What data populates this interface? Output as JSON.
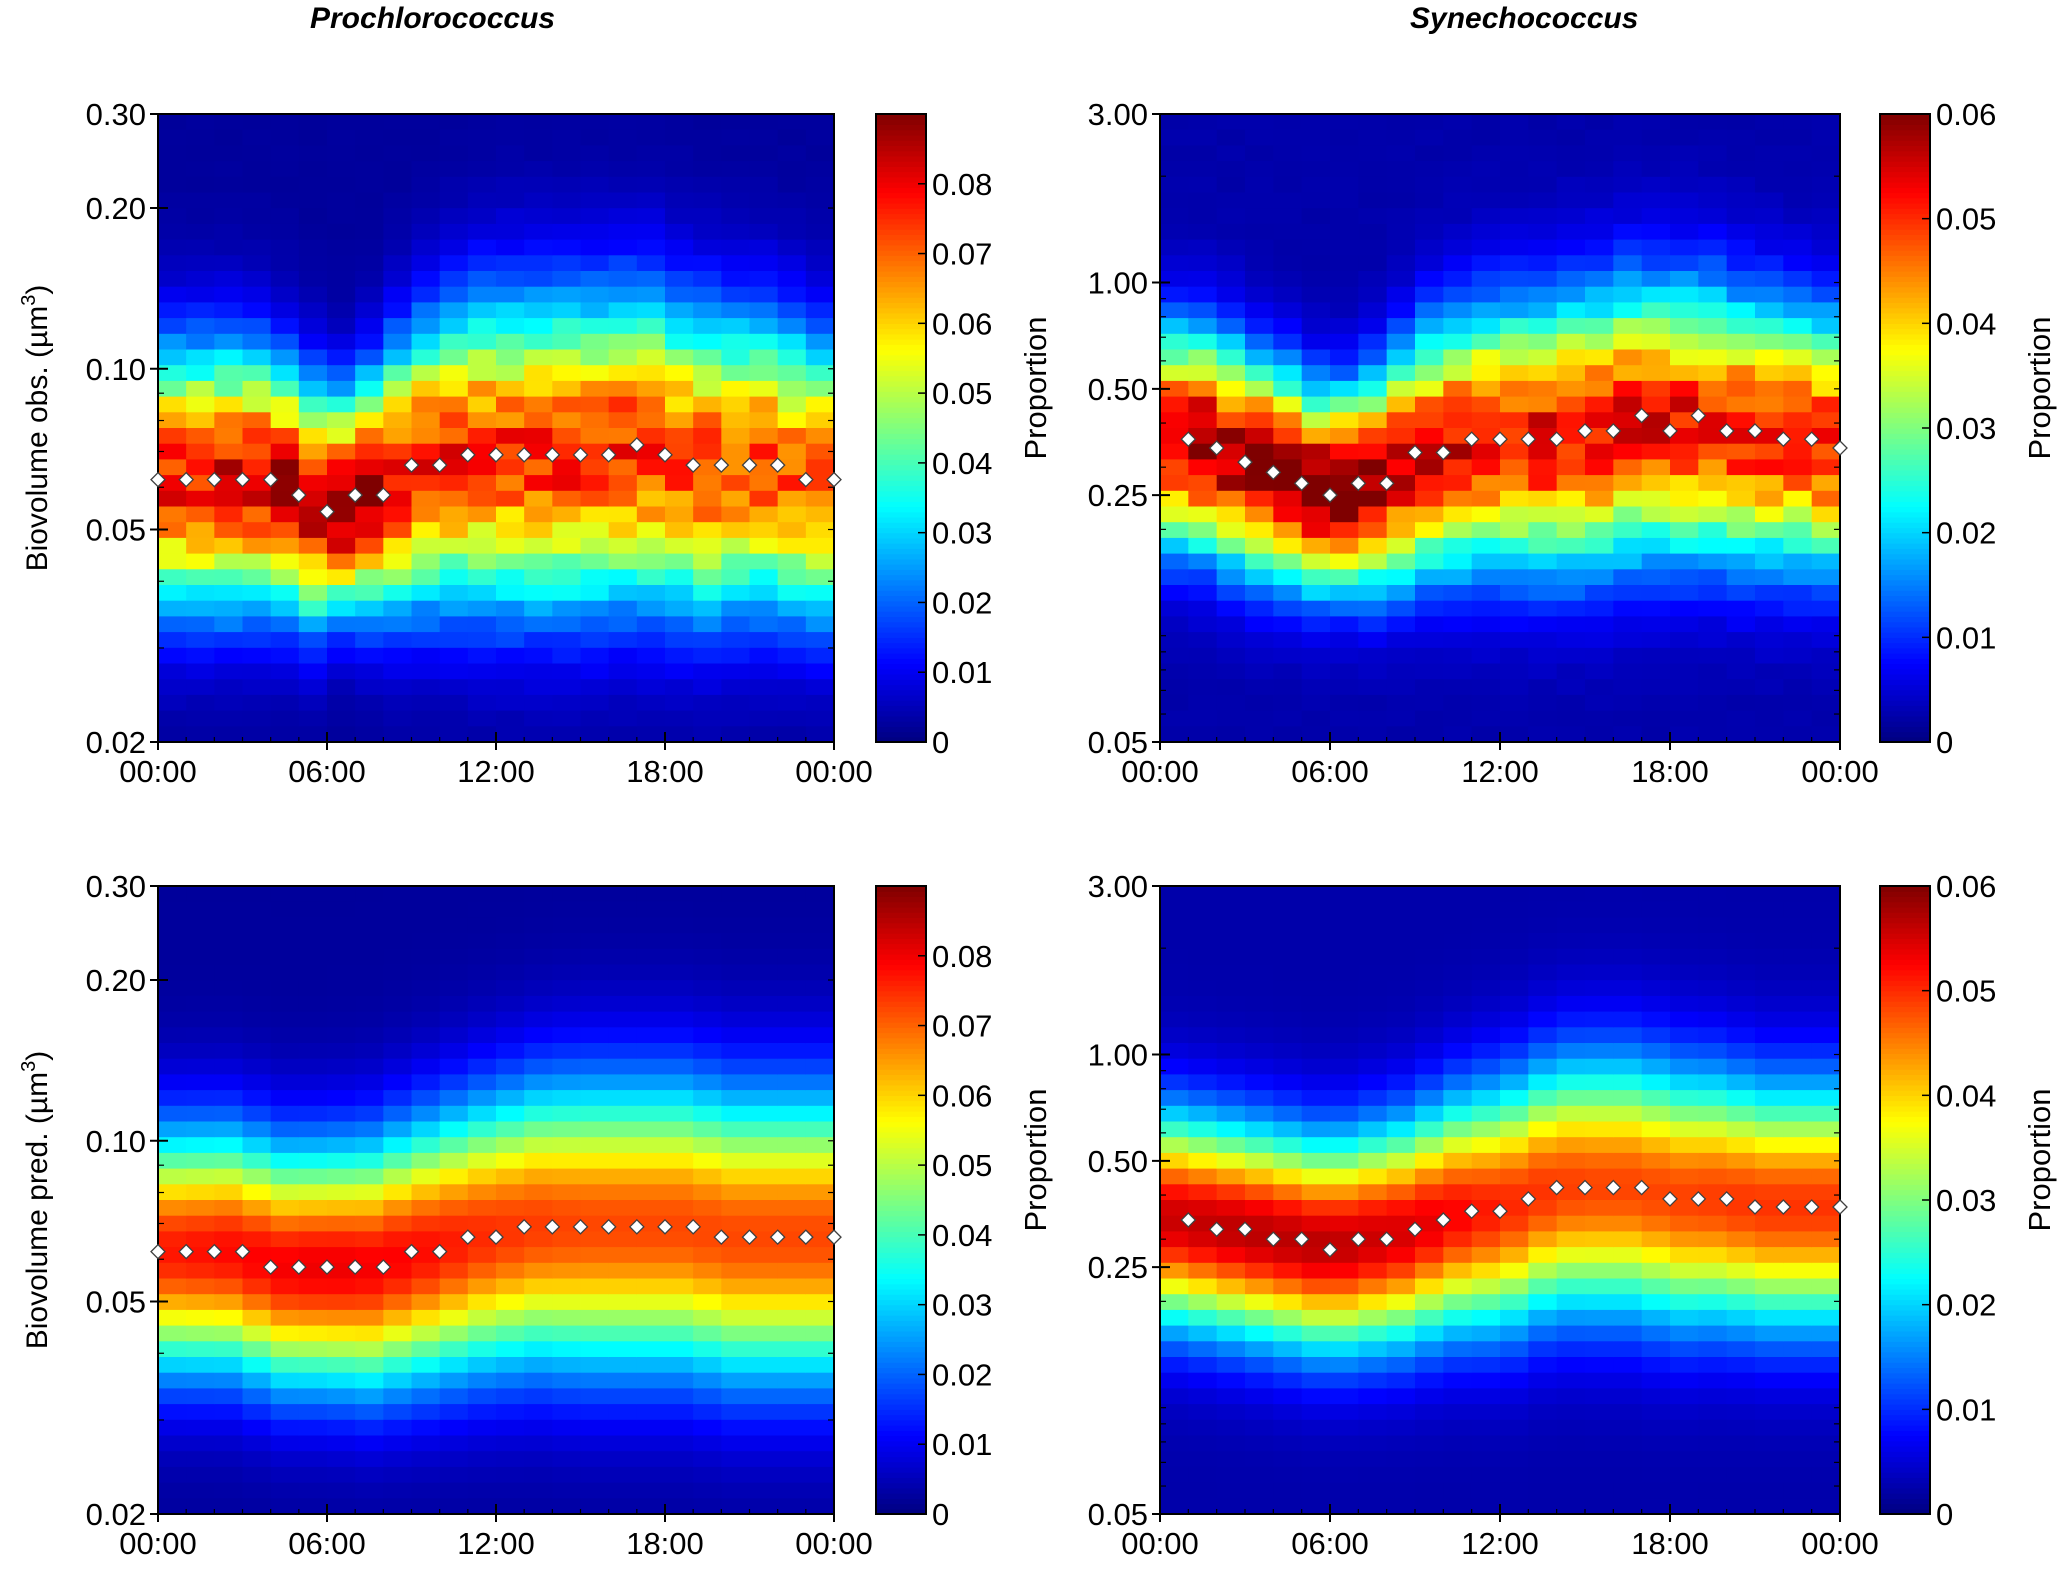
{
  "column_titles": [
    "Prochlorococcus",
    "Synechococcus"
  ],
  "colors": {
    "colormap": [
      "#00007f",
      "#0000ff",
      "#007fff",
      "#00ffff",
      "#7fff7f",
      "#ffff00",
      "#ff7f00",
      "#ff0000",
      "#7f0000"
    ],
    "marker_fill": "#ffffff",
    "marker_stroke": "#404040"
  },
  "chart_data": [
    {
      "type": "heatmap",
      "panel": "top-left",
      "title": "",
      "xlabel": "",
      "ylabel": "Biovolume obs. (µm3)",
      "ylabel_main": "Biovolume obs. (µm",
      "ylabel_sup": "3",
      "ylabel_close": ")",
      "yscale": "log",
      "ylim": [
        0.02,
        0.3
      ],
      "yticks": [
        0.02,
        0.05,
        0.1,
        0.2,
        0.3
      ],
      "ytick_labels": [
        "0.02",
        "0.05",
        "0.10",
        "0.20",
        "0.30"
      ],
      "x_range_hours": [
        0,
        24
      ],
      "xticks_hours": [
        0,
        6,
        12,
        18,
        24
      ],
      "xtick_labels": [
        "00:00",
        "06:00",
        "12:00",
        "18:00",
        "00:00"
      ],
      "colorbar": {
        "label": "Proportion",
        "range": [
          0,
          0.09
        ],
        "ticks": [
          0,
          0.01,
          0.02,
          0.03,
          0.04,
          0.05,
          0.06,
          0.07,
          0.08
        ],
        "tick_labels": [
          "0",
          "0.01",
          "0.02",
          "0.03",
          "0.04",
          "0.05",
          "0.06",
          "0.07",
          "0.08"
        ]
      },
      "series": [
        {
          "marker": "diamond",
          "x_hours": [
            0,
            1,
            2,
            3,
            4,
            5,
            6,
            7,
            8,
            9,
            10,
            11,
            12,
            13,
            14,
            15,
            16,
            17,
            18,
            19,
            20,
            21,
            22,
            23,
            24
          ],
          "y": [
            0.062,
            0.062,
            0.062,
            0.062,
            0.062,
            0.058,
            0.054,
            0.058,
            0.058,
            0.066,
            0.066,
            0.069,
            0.069,
            0.069,
            0.069,
            0.069,
            0.069,
            0.072,
            0.069,
            0.066,
            0.066,
            0.066,
            0.066,
            0.062,
            0.062
          ]
        }
      ],
      "heatmap_profile": {
        "description": "distribution centered on series median",
        "peak_value_hours": [
          0,
          3,
          6,
          6.5,
          8,
          9,
          12,
          15,
          18,
          21,
          24
        ],
        "peak_values": [
          0.075,
          0.078,
          0.085,
          0.089,
          0.08,
          0.075,
          0.072,
          0.074,
          0.072,
          0.07,
          0.07
        ],
        "log_sigma": [
          0.16,
          0.16,
          0.14,
          0.13,
          0.15,
          0.17,
          0.19,
          0.19,
          0.19,
          0.18,
          0.17
        ]
      }
    },
    {
      "type": "heatmap",
      "panel": "top-right",
      "title": "",
      "xlabel": "",
      "ylabel": "",
      "yscale": "log",
      "ylim": [
        0.05,
        3.0
      ],
      "yticks": [
        0.05,
        0.25,
        0.5,
        1.0,
        3.0
      ],
      "ytick_labels": [
        "0.05",
        "0.25",
        "0.50",
        "1.00",
        "3.00"
      ],
      "x_range_hours": [
        0,
        24
      ],
      "xticks_hours": [
        0,
        6,
        12,
        18,
        24
      ],
      "xtick_labels": [
        "00:00",
        "06:00",
        "12:00",
        "18:00",
        "00:00"
      ],
      "colorbar": {
        "label": "Proportion",
        "range": [
          0,
          0.06
        ],
        "ticks": [
          0,
          0.01,
          0.02,
          0.03,
          0.04,
          0.05,
          0.06
        ],
        "tick_labels": [
          "0",
          "0.01",
          "0.02",
          "0.03",
          "0.04",
          "0.05",
          "0.06"
        ]
      },
      "series": [
        {
          "marker": "diamond",
          "x_hours": [
            1,
            2,
            3,
            4,
            5,
            6,
            7,
            8,
            9,
            10,
            11,
            12,
            13,
            14,
            15,
            16,
            17,
            18,
            19,
            20,
            21,
            22,
            23,
            24
          ],
          "y": [
            0.36,
            0.34,
            0.31,
            0.29,
            0.27,
            0.25,
            0.27,
            0.27,
            0.33,
            0.33,
            0.36,
            0.36,
            0.36,
            0.36,
            0.38,
            0.38,
            0.42,
            0.38,
            0.42,
            0.38,
            0.38,
            0.36,
            0.36,
            0.34
          ]
        }
      ],
      "heatmap_profile": {
        "description": "distribution centered on series median",
        "peak_value_hours": [
          0,
          3,
          6,
          6.5,
          8,
          9,
          12,
          15,
          18,
          21,
          24
        ],
        "peak_values": [
          0.055,
          0.057,
          0.06,
          0.06,
          0.057,
          0.052,
          0.05,
          0.051,
          0.05,
          0.05,
          0.05
        ],
        "log_sigma": [
          0.2,
          0.2,
          0.18,
          0.18,
          0.2,
          0.22,
          0.24,
          0.25,
          0.25,
          0.24,
          0.23
        ]
      }
    },
    {
      "type": "heatmap",
      "panel": "bottom-left",
      "title": "",
      "xlabel": "",
      "ylabel": "Biovolume pred. (µm3)",
      "ylabel_main": "Biovolume pred. (µm",
      "ylabel_sup": "3",
      "ylabel_close": ")",
      "yscale": "log",
      "ylim": [
        0.02,
        0.3
      ],
      "yticks": [
        0.02,
        0.05,
        0.1,
        0.2,
        0.3
      ],
      "ytick_labels": [
        "0.02",
        "0.05",
        "0.10",
        "0.20",
        "0.30"
      ],
      "x_range_hours": [
        0,
        24
      ],
      "xticks_hours": [
        0,
        6,
        12,
        18,
        24
      ],
      "xtick_labels": [
        "00:00",
        "06:00",
        "12:00",
        "18:00",
        "00:00"
      ],
      "colorbar": {
        "label": "Proportion",
        "range": [
          0,
          0.09
        ],
        "ticks": [
          0,
          0.01,
          0.02,
          0.03,
          0.04,
          0.05,
          0.06,
          0.07,
          0.08
        ],
        "tick_labels": [
          "0",
          "0.01",
          "0.02",
          "0.03",
          "0.04",
          "0.05",
          "0.06",
          "0.07",
          "0.08"
        ]
      },
      "series": [
        {
          "marker": "diamond",
          "x_hours": [
            0,
            1,
            2,
            3,
            4,
            5,
            6,
            7,
            8,
            9,
            10,
            11,
            12,
            13,
            14,
            15,
            16,
            17,
            18,
            19,
            20,
            21,
            22,
            23,
            24
          ],
          "y": [
            0.062,
            0.062,
            0.062,
            0.062,
            0.058,
            0.058,
            0.058,
            0.058,
            0.058,
            0.062,
            0.062,
            0.066,
            0.066,
            0.069,
            0.069,
            0.069,
            0.069,
            0.069,
            0.069,
            0.069,
            0.066,
            0.066,
            0.066,
            0.066,
            0.066
          ]
        }
      ],
      "heatmap_profile": {
        "description": "smooth model distribution centered on series median",
        "peak_value_hours": [
          0,
          3,
          6,
          9,
          12,
          15,
          18,
          21,
          24
        ],
        "peak_values": [
          0.074,
          0.076,
          0.078,
          0.076,
          0.072,
          0.07,
          0.07,
          0.07,
          0.07
        ],
        "log_sigma": [
          0.15,
          0.15,
          0.15,
          0.16,
          0.17,
          0.18,
          0.18,
          0.18,
          0.18
        ]
      }
    },
    {
      "type": "heatmap",
      "panel": "bottom-right",
      "title": "",
      "xlabel": "",
      "ylabel": "",
      "yscale": "log",
      "ylim": [
        0.05,
        3.0
      ],
      "yticks": [
        0.05,
        0.25,
        0.5,
        1.0,
        3.0
      ],
      "ytick_labels": [
        "0.05",
        "0.25",
        "0.50",
        "1.00",
        "3.00"
      ],
      "x_range_hours": [
        0,
        24
      ],
      "xticks_hours": [
        0,
        6,
        12,
        18,
        24
      ],
      "xtick_labels": [
        "00:00",
        "06:00",
        "12:00",
        "18:00",
        "00:00"
      ],
      "colorbar": {
        "label": "Proportion",
        "range": [
          0,
          0.06
        ],
        "ticks": [
          0,
          0.01,
          0.02,
          0.03,
          0.04,
          0.05,
          0.06
        ],
        "tick_labels": [
          "0",
          "0.01",
          "0.02",
          "0.03",
          "0.04",
          "0.05",
          "0.06"
        ]
      },
      "series": [
        {
          "marker": "diamond",
          "x_hours": [
            1,
            2,
            3,
            4,
            5,
            6,
            7,
            8,
            9,
            10,
            11,
            12,
            13,
            14,
            15,
            16,
            17,
            18,
            19,
            20,
            21,
            22,
            23,
            24
          ],
          "y": [
            0.34,
            0.32,
            0.32,
            0.3,
            0.3,
            0.28,
            0.3,
            0.3,
            0.32,
            0.34,
            0.36,
            0.36,
            0.39,
            0.42,
            0.42,
            0.42,
            0.42,
            0.39,
            0.39,
            0.39,
            0.37,
            0.37,
            0.37,
            0.37
          ]
        }
      ],
      "heatmap_profile": {
        "description": "smooth model distribution centered on series median",
        "peak_value_hours": [
          0,
          3,
          6,
          9,
          12,
          15,
          18,
          21,
          24
        ],
        "peak_values": [
          0.053,
          0.054,
          0.054,
          0.052,
          0.048,
          0.046,
          0.046,
          0.047,
          0.047
        ],
        "log_sigma": [
          0.2,
          0.2,
          0.2,
          0.21,
          0.23,
          0.24,
          0.24,
          0.23,
          0.23
        ]
      }
    }
  ]
}
